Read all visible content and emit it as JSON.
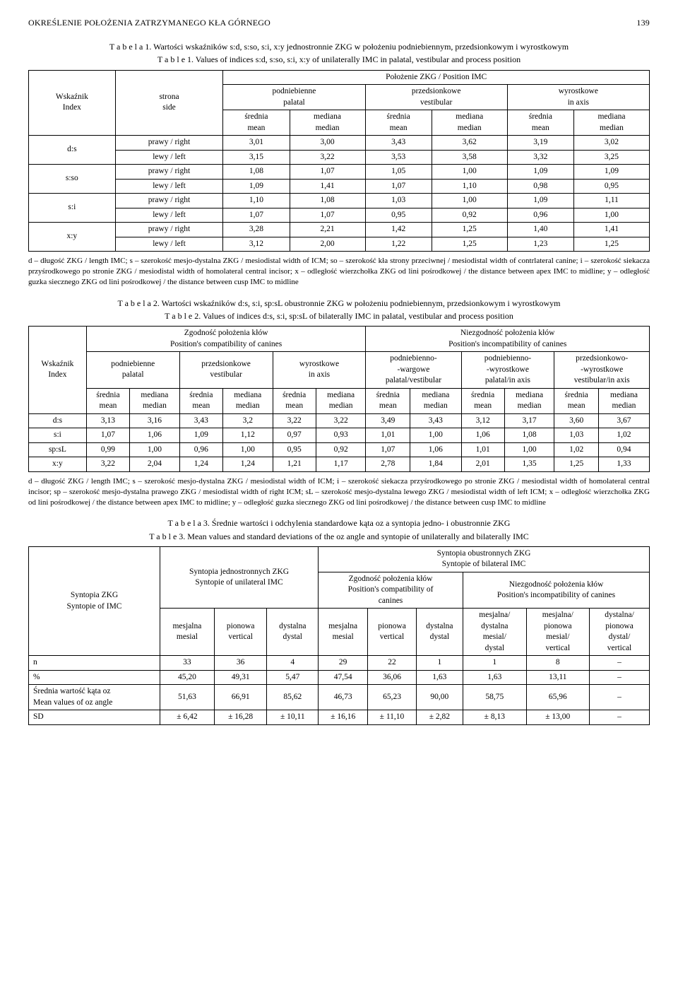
{
  "running_head": {
    "title": "OKREŚLENIE POŁOŻENIA ZATRZYMANEGO KŁA GÓRNEGO",
    "page": "139"
  },
  "table1": {
    "caption_pl": "T a b e l a  1. Wartości wskaźników s:d, s:so, s:i, x:y jednostronnie ZKG w położeniu podniebiennym, przedsionkowym i wyrostkowym",
    "caption_en": "T a b l e  1. Values of indices s:d, s:so, s:i, x:y of unilaterally IMC in palatal, vestibular and process position",
    "header": {
      "group": "Położenie ZKG / Position IMC",
      "row1": "Wskaźnik\nIndex",
      "row2": "strona\nside",
      "cols": [
        "podniebienne\npalatal",
        "przedsionkowe\nvestibular",
        "wyrostkowe\nin axis"
      ],
      "sub": [
        "średnia\nmean",
        "mediana\nmedian"
      ]
    },
    "indices": [
      "d:s",
      "s:so",
      "s:i",
      "x:y"
    ],
    "sides": [
      "prawy / right",
      "lewy / left"
    ],
    "data": {
      "d:s": {
        "prawy": [
          "3,01",
          "3,00",
          "3,43",
          "3,62",
          "3,19",
          "3,02"
        ],
        "lewy": [
          "3,15",
          "3,22",
          "3,53",
          "3,58",
          "3,32",
          "3,25"
        ]
      },
      "s:so": {
        "prawy": [
          "1,08",
          "1,07",
          "1,05",
          "1,00",
          "1,09",
          "1,09"
        ],
        "lewy": [
          "1,09",
          "1,41",
          "1,07",
          "1,10",
          "0,98",
          "0,95"
        ]
      },
      "s:i": {
        "prawy": [
          "1,10",
          "1,08",
          "1,03",
          "1,00",
          "1,09",
          "1,11"
        ],
        "lewy": [
          "1,07",
          "1,07",
          "0,95",
          "0,92",
          "0,96",
          "1,00"
        ]
      },
      "x:y": {
        "prawy": [
          "3,28",
          "2,21",
          "1,42",
          "1,25",
          "1,40",
          "1,41"
        ],
        "lewy": [
          "3,12",
          "2,00",
          "1,22",
          "1,25",
          "1,23",
          "1,25"
        ]
      }
    },
    "footnote": "d – długość ZKG / length IMC; s – szerokość mesjo-dystalna ZKG / mesiodistal width of ICM; so – szerokość kła strony przeciwnej / mesiodistal width of contrlateral canine; i – szerokość siekacza przyśrodkowego po stronie ZKG / mesiodistal width of homolateral central incisor; x – odległość wierzchołka ZKG od lini pośrodkowej / the distance between apex IMC to midline; y – odległość guzka siecznego ZKG od lini pośrodkowej / the distance between cusp IMC to  midline"
  },
  "table2": {
    "caption_pl": "T a b e l a  2. Wartości wskaźników d:s, s:i, sp:sL obustronnie ZKG w położeniu podniebiennym, przedsionkowym i wyrostkowym",
    "caption_en": "T a b l e  2. Values of indices d:s, s:i, sp:sL of bilaterally IMC in palatal, vestibular and process position",
    "header": {
      "row1": "Wskaźnik\nIndex",
      "group_left": "Zgodność położenia kłów\nPosition's compatibility of canines",
      "group_right": "Niezgodność położenia kłów\nPosition's incompatibility of canines",
      "cols_left": [
        "podniebienne\npalatal",
        "przedsionkowe\nvestibular",
        "wyrostkowe\nin axis"
      ],
      "cols_right": [
        "podniebienno-\n-wargowe\npalatal/vestibular",
        "podniebienno-\n-wyrostkowe\npalatal/in axis",
        "przedsionkowo-\n-wyrostkowe\nvestibular/in axis"
      ],
      "sub": [
        "średnia\nmean",
        "mediana\nmedian"
      ]
    },
    "rows": [
      {
        "idx": "d:s",
        "vals": [
          "3,13",
          "3,16",
          "3,43",
          "3,2",
          "3,22",
          "3,22",
          "3,49",
          "3,43",
          "3,12",
          "3,17",
          "3,60",
          "3,67"
        ]
      },
      {
        "idx": "s:i",
        "vals": [
          "1,07",
          "1,06",
          "1,09",
          "1,12",
          "0,97",
          "0,93",
          "1,01",
          "1,00",
          "1,06",
          "1,08",
          "1,03",
          "1,02"
        ]
      },
      {
        "idx": "sp:sL",
        "vals": [
          "0,99",
          "1,00",
          "0,96",
          "1,00",
          "0,95",
          "0,92",
          "1,07",
          "1,06",
          "1,01",
          "1,00",
          "1,02",
          "0,94"
        ]
      },
      {
        "idx": "x:y",
        "vals": [
          "3,22",
          "2,04",
          "1,24",
          "1,24",
          "1,21",
          "1,17",
          "2,78",
          "1,84",
          "2,01",
          "1,35",
          "1,25",
          "1,33"
        ]
      }
    ],
    "footnote": "d – długość ZKG / length IMC; s – szerokość mesjo-dystalna ZKG / mesiodistal width of ICM; i – szerokość siekacza przyśrodkowego po stronie ZKG / mesiodistal width of homolateral central incisor; sp – szerokość mesjo-dystalna prawego ZKG / mesiodistal width of right ICM; sL – szerokość mesjo-dystalna lewego ZKG / mesiodistal width of left ICM; x – odległość wierzchołka ZKG od lini pośrodkowej / the distance between apex IMC to midline; y – odległość guzka siecznego ZKG od lini pośrodkowej / the distance between cusp IMC to  midline"
  },
  "table3": {
    "caption_pl": "T a b e l a  3. Średnie wartości i odchylenia standardowe kąta oz a syntopia jedno- i obustronnie ZKG",
    "caption_en": "T a b l e  3. Mean values and standard deviations of the oz angle and syntopie of unilaterally and bilaterally IMC",
    "header": {
      "row1": "Syntopia ZKG\nSyntopie of IMC",
      "uni": "Syntopia jednostronnych ZKG\nSyntopie of unilateral IMC",
      "bi": "Syntopia obustronnych ZKG\nSyntopie of bilateral IMC",
      "bi_left": "Zgodność położenia kłów\nPosition's compatibility of\ncanines",
      "bi_right": "Niezgodność położenia kłów\nPosition's incompatibility of canines",
      "uni_cols": [
        "mesjalna\nmesial",
        "pionowa\nvertical",
        "dystalna\ndystal"
      ],
      "bi_left_cols": [
        "mesjalna\nmesial",
        "pionowa\nvertical",
        "dystalna\ndystal"
      ],
      "bi_right_cols": [
        "mesjalna/\ndystalna\nmesial/\ndystal",
        "mesjalna/\npionowa\nmesial/\nvertical",
        "dystalna/\npionowa\ndystal/\nvertical"
      ]
    },
    "rows": [
      {
        "label": "n",
        "vals": [
          "33",
          "36",
          "4",
          "29",
          "22",
          "1",
          "1",
          "8",
          "–"
        ]
      },
      {
        "label": "%",
        "vals": [
          "45,20",
          "49,31",
          "5,47",
          "47,54",
          "36,06",
          "1,63",
          "1,63",
          "13,11",
          "–"
        ]
      },
      {
        "label": "Średnia wartość kąta oz\nMean values of oz angle",
        "vals": [
          "51,63",
          "66,91",
          "85,62",
          "46,73",
          "65,23",
          "90,00",
          "58,75",
          "65,96",
          "–"
        ]
      },
      {
        "label": "SD",
        "vals": [
          "± 6,42",
          "± 16,28",
          "± 10,11",
          "± 16,16",
          "± 11,10",
          "± 2,82",
          "± 8,13",
          "± 13,00",
          "–"
        ]
      }
    ]
  }
}
